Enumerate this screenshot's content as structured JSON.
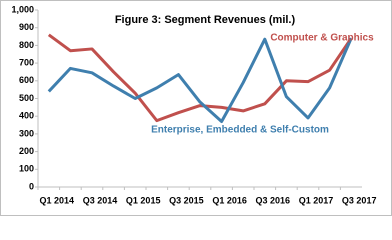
{
  "chart_data": {
    "type": "line",
    "title": "Figure 3: Segment Revenues (mil.)",
    "categories": [
      "Q1 2014",
      null,
      "Q3 2014",
      null,
      "Q1 2015",
      null,
      "Q3 2015",
      null,
      "Q1 2016",
      null,
      "Q3 2016",
      null,
      "Q1 2017",
      null,
      "Q3 2017"
    ],
    "series": [
      {
        "name": "Computer & Graphics",
        "color": "#c0504d",
        "values": [
          860,
          770,
          780,
          650,
          530,
          375,
          420,
          460,
          450,
          430,
          470,
          600,
          595,
          660,
          840
        ]
      },
      {
        "name": "Enterprise, Embedded & Self-Custom",
        "color": "#3f7fae",
        "values": [
          540,
          670,
          645,
          570,
          500,
          560,
          635,
          480,
          370,
          590,
          835,
          510,
          390,
          560,
          840
        ]
      }
    ],
    "ylim": [
      0,
      1000
    ],
    "yticks": [
      0,
      100,
      200,
      300,
      400,
      500,
      600,
      700,
      800,
      900,
      {
        "value": 1000,
        "label": "1,000"
      }
    ],
    "grid": false
  }
}
